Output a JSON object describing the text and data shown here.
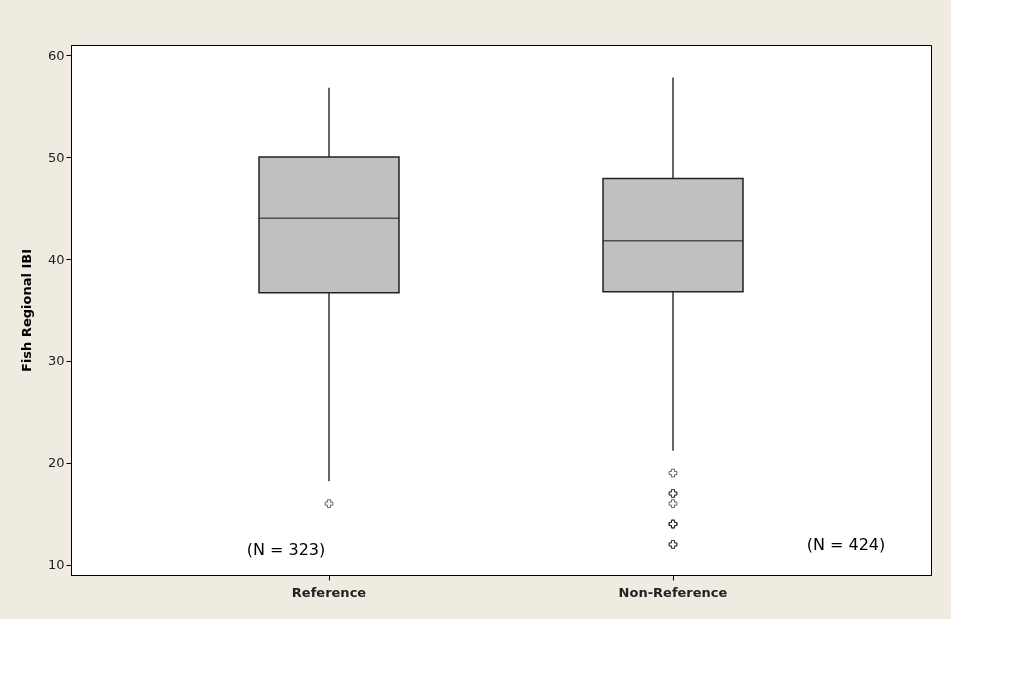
{
  "chart_data": {
    "type": "box",
    "ylabel": "Fish Regional IBI",
    "categories": [
      "Reference",
      "Non-Reference"
    ],
    "ylim": [
      9,
      61
    ],
    "yticks": [
      10,
      20,
      30,
      40,
      50,
      60
    ],
    "series": [
      {
        "color": "#c0c0c0",
        "boxes": [
          {
            "low": 18.2,
            "q1": 36.7,
            "median": 44,
            "q3": 50,
            "high": 56.8,
            "outliers": [
              16
            ]
          },
          {
            "low": 21.2,
            "q1": 36.8,
            "median": 41.8,
            "q3": 47.9,
            "high": 57.8,
            "outliers": [
              19,
              17,
              17,
              16,
              14,
              14,
              14,
              12,
              12
            ]
          }
        ]
      }
    ],
    "annotations": [
      "(N = 323)",
      "(N = 424)"
    ]
  }
}
